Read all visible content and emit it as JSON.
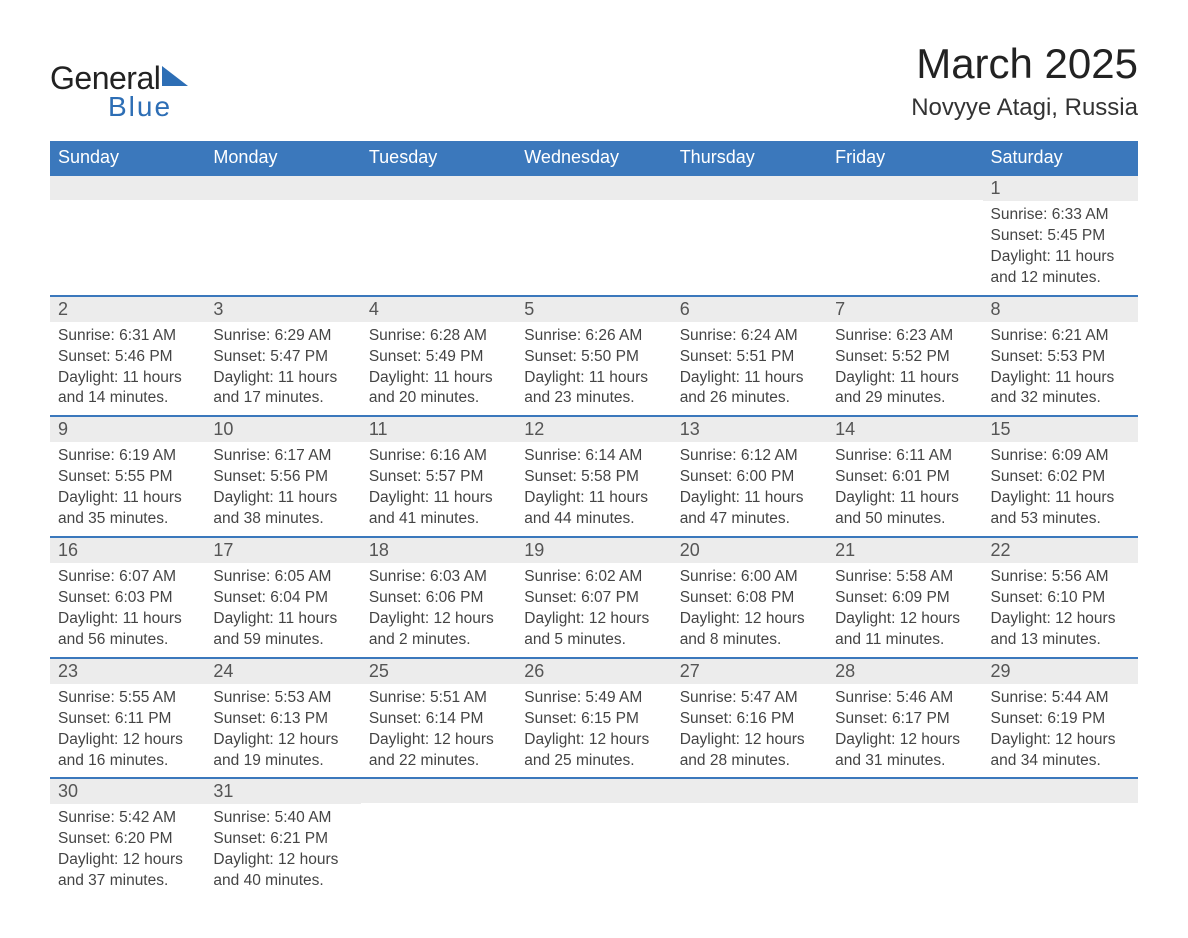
{
  "logo": {
    "general": "General",
    "blue": "Blue"
  },
  "title": "March 2025",
  "location": "Novyye Atagi, Russia",
  "dow": [
    "Sunday",
    "Monday",
    "Tuesday",
    "Wednesday",
    "Thursday",
    "Friday",
    "Saturday"
  ],
  "labels": {
    "sunrise": "Sunrise:",
    "sunset": "Sunset:",
    "daylight": "Daylight:"
  },
  "colors": {
    "header_bg": "#3b78bc",
    "header_text": "#ffffff",
    "daynum_bg": "#ececec",
    "row_border": "#3b78bc",
    "logo_accent": "#2d6eb5"
  },
  "weeks": [
    [
      null,
      null,
      null,
      null,
      null,
      null,
      {
        "n": "1",
        "sunrise": "6:33 AM",
        "sunset": "5:45 PM",
        "daylight": "11 hours and 12 minutes."
      }
    ],
    [
      {
        "n": "2",
        "sunrise": "6:31 AM",
        "sunset": "5:46 PM",
        "daylight": "11 hours and 14 minutes."
      },
      {
        "n": "3",
        "sunrise": "6:29 AM",
        "sunset": "5:47 PM",
        "daylight": "11 hours and 17 minutes."
      },
      {
        "n": "4",
        "sunrise": "6:28 AM",
        "sunset": "5:49 PM",
        "daylight": "11 hours and 20 minutes."
      },
      {
        "n": "5",
        "sunrise": "6:26 AM",
        "sunset": "5:50 PM",
        "daylight": "11 hours and 23 minutes."
      },
      {
        "n": "6",
        "sunrise": "6:24 AM",
        "sunset": "5:51 PM",
        "daylight": "11 hours and 26 minutes."
      },
      {
        "n": "7",
        "sunrise": "6:23 AM",
        "sunset": "5:52 PM",
        "daylight": "11 hours and 29 minutes."
      },
      {
        "n": "8",
        "sunrise": "6:21 AM",
        "sunset": "5:53 PM",
        "daylight": "11 hours and 32 minutes."
      }
    ],
    [
      {
        "n": "9",
        "sunrise": "6:19 AM",
        "sunset": "5:55 PM",
        "daylight": "11 hours and 35 minutes."
      },
      {
        "n": "10",
        "sunrise": "6:17 AM",
        "sunset": "5:56 PM",
        "daylight": "11 hours and 38 minutes."
      },
      {
        "n": "11",
        "sunrise": "6:16 AM",
        "sunset": "5:57 PM",
        "daylight": "11 hours and 41 minutes."
      },
      {
        "n": "12",
        "sunrise": "6:14 AM",
        "sunset": "5:58 PM",
        "daylight": "11 hours and 44 minutes."
      },
      {
        "n": "13",
        "sunrise": "6:12 AM",
        "sunset": "6:00 PM",
        "daylight": "11 hours and 47 minutes."
      },
      {
        "n": "14",
        "sunrise": "6:11 AM",
        "sunset": "6:01 PM",
        "daylight": "11 hours and 50 minutes."
      },
      {
        "n": "15",
        "sunrise": "6:09 AM",
        "sunset": "6:02 PM",
        "daylight": "11 hours and 53 minutes."
      }
    ],
    [
      {
        "n": "16",
        "sunrise": "6:07 AM",
        "sunset": "6:03 PM",
        "daylight": "11 hours and 56 minutes."
      },
      {
        "n": "17",
        "sunrise": "6:05 AM",
        "sunset": "6:04 PM",
        "daylight": "11 hours and 59 minutes."
      },
      {
        "n": "18",
        "sunrise": "6:03 AM",
        "sunset": "6:06 PM",
        "daylight": "12 hours and 2 minutes."
      },
      {
        "n": "19",
        "sunrise": "6:02 AM",
        "sunset": "6:07 PM",
        "daylight": "12 hours and 5 minutes."
      },
      {
        "n": "20",
        "sunrise": "6:00 AM",
        "sunset": "6:08 PM",
        "daylight": "12 hours and 8 minutes."
      },
      {
        "n": "21",
        "sunrise": "5:58 AM",
        "sunset": "6:09 PM",
        "daylight": "12 hours and 11 minutes."
      },
      {
        "n": "22",
        "sunrise": "5:56 AM",
        "sunset": "6:10 PM",
        "daylight": "12 hours and 13 minutes."
      }
    ],
    [
      {
        "n": "23",
        "sunrise": "5:55 AM",
        "sunset": "6:11 PM",
        "daylight": "12 hours and 16 minutes."
      },
      {
        "n": "24",
        "sunrise": "5:53 AM",
        "sunset": "6:13 PM",
        "daylight": "12 hours and 19 minutes."
      },
      {
        "n": "25",
        "sunrise": "5:51 AM",
        "sunset": "6:14 PM",
        "daylight": "12 hours and 22 minutes."
      },
      {
        "n": "26",
        "sunrise": "5:49 AM",
        "sunset": "6:15 PM",
        "daylight": "12 hours and 25 minutes."
      },
      {
        "n": "27",
        "sunrise": "5:47 AM",
        "sunset": "6:16 PM",
        "daylight": "12 hours and 28 minutes."
      },
      {
        "n": "28",
        "sunrise": "5:46 AM",
        "sunset": "6:17 PM",
        "daylight": "12 hours and 31 minutes."
      },
      {
        "n": "29",
        "sunrise": "5:44 AM",
        "sunset": "6:19 PM",
        "daylight": "12 hours and 34 minutes."
      }
    ],
    [
      {
        "n": "30",
        "sunrise": "5:42 AM",
        "sunset": "6:20 PM",
        "daylight": "12 hours and 37 minutes."
      },
      {
        "n": "31",
        "sunrise": "5:40 AM",
        "sunset": "6:21 PM",
        "daylight": "12 hours and 40 minutes."
      },
      null,
      null,
      null,
      null,
      null
    ]
  ]
}
